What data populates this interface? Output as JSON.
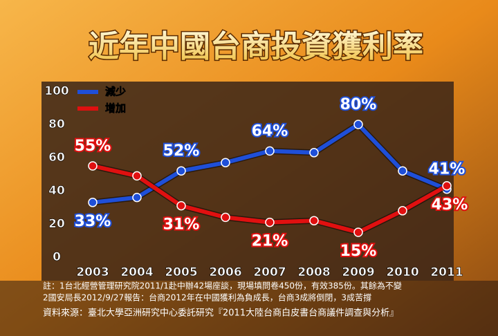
{
  "chart_data": {
    "type": "line",
    "title": "近年中國台商投資獲利率",
    "categories": [
      "2003",
      "2004",
      "2005",
      "2006",
      "2007",
      "2008",
      "2009",
      "2010",
      "2011"
    ],
    "series": [
      {
        "name": "減少",
        "color": "#1f4fd8",
        "values": [
          33,
          36,
          52,
          57,
          64,
          63,
          80,
          52,
          41
        ],
        "value_labels": [
          "33%",
          null,
          "52%",
          null,
          "64%",
          null,
          "80%",
          null,
          "41%"
        ]
      },
      {
        "name": "增加",
        "color": "#e01010",
        "values": [
          55,
          49,
          31,
          24,
          21,
          22,
          15,
          28,
          43
        ],
        "value_labels": [
          "55%",
          null,
          "31%",
          null,
          "21%",
          null,
          "15%",
          null,
          "43%"
        ]
      }
    ],
    "ylim": [
      0,
      100
    ],
    "yticks": [
      0,
      20,
      40,
      60,
      80,
      100
    ],
    "legend": "top-left",
    "notes": [
      "註：1台北經營管理研究院2011/1赴中辦42場座談，現場填問卷450份，有效385份。其餘為不變",
      "2國安局長2012/9/27報告：台商2012年在中國獲利為負成長，台商3成將倒閉，3成苦撐"
    ],
    "source": "資料來源：臺北大學亞洲研究中心委託研究『2011大陸台商白皮書台商議件調查與分析』"
  }
}
